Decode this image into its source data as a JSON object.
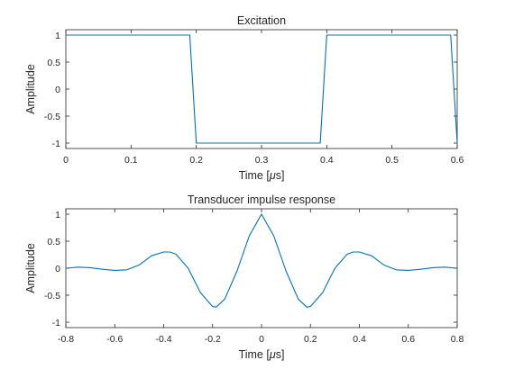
{
  "chart_data": [
    {
      "type": "line",
      "title": "Excitation",
      "xlabel_parts": {
        "prefix": "Time [",
        "greek": "μ",
        "suffix": "s]"
      },
      "ylabel": "Amplitude",
      "xlim": [
        0,
        0.6
      ],
      "ylim": [
        -1.1,
        1.1
      ],
      "xticks": [
        0,
        0.1,
        0.2,
        0.3,
        0.4,
        0.5,
        0.6
      ],
      "xtick_labels": [
        "0",
        "0.1",
        "0.2",
        "0.3",
        "0.4",
        "0.5",
        "0.6"
      ],
      "yticks": [
        1,
        0.5,
        0,
        -0.5,
        -1
      ],
      "ytick_labels": [
        "1",
        "0.5",
        "0",
        "-0.5",
        "-1"
      ],
      "line_color": "#0072BD",
      "series": [
        {
          "x": [
            0,
            0.19,
            0.2,
            0.39,
            0.4,
            0.59,
            0.6
          ],
          "y": [
            1,
            1,
            -1,
            -1,
            1,
            1,
            -1
          ]
        }
      ]
    },
    {
      "type": "line",
      "title": "Transducer impulse response",
      "xlabel_parts": {
        "prefix": "Time [",
        "greek": "μ",
        "suffix": "s]"
      },
      "ylabel": "Amplitude",
      "xlim": [
        -0.8,
        0.8
      ],
      "ylim": [
        -1.1,
        1.1
      ],
      "xticks": [
        -0.8,
        -0.6,
        -0.4,
        -0.2,
        0,
        0.2,
        0.4,
        0.6,
        0.8
      ],
      "xtick_labels": [
        "-0.8",
        "-0.6",
        "-0.4",
        "-0.2",
        "0",
        "0.2",
        "0.4",
        "0.6",
        "0.8"
      ],
      "yticks": [
        1,
        0.5,
        0,
        -0.5,
        -1
      ],
      "ytick_labels": [
        "1",
        "0.5",
        "0",
        "-0.5",
        "-1"
      ],
      "line_color": "#0072BD",
      "series": [
        {
          "x": [
            -0.8,
            -0.75,
            -0.7,
            -0.65,
            -0.6,
            -0.55,
            -0.5,
            -0.45,
            -0.4,
            -0.375,
            -0.35,
            -0.3,
            -0.25,
            -0.2,
            -0.185,
            -0.15,
            -0.1,
            -0.05,
            0,
            0.05,
            0.1,
            0.15,
            0.185,
            0.2,
            0.25,
            0.3,
            0.35,
            0.375,
            0.4,
            0.45,
            0.5,
            0.55,
            0.6,
            0.65,
            0.7,
            0.75,
            0.8
          ],
          "y": [
            0.0,
            0.02,
            0.01,
            -0.02,
            -0.04,
            -0.03,
            0.06,
            0.23,
            0.3,
            0.3,
            0.26,
            0.0,
            -0.45,
            -0.71,
            -0.72,
            -0.57,
            -0.05,
            0.6,
            1.0,
            0.6,
            -0.05,
            -0.57,
            -0.72,
            -0.71,
            -0.45,
            0.0,
            0.26,
            0.3,
            0.3,
            0.23,
            0.06,
            -0.03,
            -0.04,
            -0.02,
            0.01,
            0.02,
            0.0
          ]
        }
      ]
    }
  ]
}
